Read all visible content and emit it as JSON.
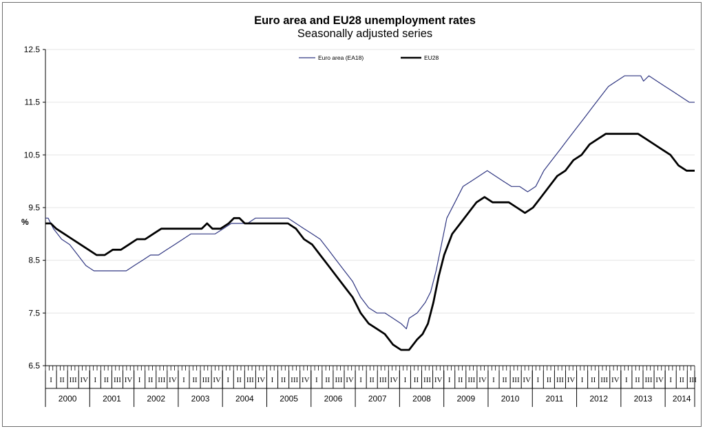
{
  "chart_data": {
    "type": "line",
    "title": "Euro area and EU28 unemployment rates",
    "subtitle": "Seasonally adjusted series",
    "ylabel": "%",
    "ylim": [
      6.5,
      12.5
    ],
    "yticks": [
      "12.5",
      "11.5",
      "10.5",
      "9.5",
      "8.5",
      "7.5",
      "6.5"
    ],
    "grid": true,
    "legend_position": "top-center",
    "years": [
      "2000",
      "2001",
      "2002",
      "2003",
      "2004",
      "2005",
      "2006",
      "2007",
      "2008",
      "2009",
      "2010",
      "2011",
      "2012",
      "2013",
      "2014"
    ],
    "quarters": [
      "I",
      "II",
      "III",
      "IV"
    ],
    "last_year_quarters": 3,
    "months_total": 176,
    "series": [
      {
        "name": "Euro area (EA18)",
        "color": "#2e3580",
        "keypoints": [
          [
            0,
            9.3
          ],
          [
            1,
            9.3
          ],
          [
            3,
            9.1
          ],
          [
            6,
            8.9
          ],
          [
            9,
            8.8
          ],
          [
            12,
            8.6
          ],
          [
            15,
            8.4
          ],
          [
            18,
            8.3
          ],
          [
            21,
            8.3
          ],
          [
            24,
            8.3
          ],
          [
            27,
            8.3
          ],
          [
            30,
            8.3
          ],
          [
            33,
            8.4
          ],
          [
            36,
            8.5
          ],
          [
            39,
            8.6
          ],
          [
            42,
            8.6
          ],
          [
            45,
            8.7
          ],
          [
            48,
            8.8
          ],
          [
            51,
            8.9
          ],
          [
            54,
            9.0
          ],
          [
            57,
            9.0
          ],
          [
            60,
            9.0
          ],
          [
            63,
            9.0
          ],
          [
            66,
            9.1
          ],
          [
            69,
            9.2
          ],
          [
            72,
            9.2
          ],
          [
            75,
            9.2
          ],
          [
            78,
            9.3
          ],
          [
            81,
            9.3
          ],
          [
            84,
            9.3
          ],
          [
            87,
            9.3
          ],
          [
            90,
            9.3
          ],
          [
            93,
            9.2
          ],
          [
            96,
            9.1
          ],
          [
            99,
            9.0
          ],
          [
            102,
            8.9
          ],
          [
            105,
            8.7
          ],
          [
            108,
            8.5
          ],
          [
            111,
            8.3
          ],
          [
            114,
            8.1
          ],
          [
            117,
            7.8
          ],
          [
            120,
            7.6
          ],
          [
            123,
            7.5
          ],
          [
            126,
            7.5
          ],
          [
            129,
            7.4
          ],
          [
            132,
            7.3
          ],
          [
            134,
            7.2
          ],
          [
            135,
            7.4
          ],
          [
            138,
            7.5
          ],
          [
            141,
            7.7
          ],
          [
            143,
            7.9
          ],
          [
            145,
            8.3
          ],
          [
            147,
            8.8
          ],
          [
            149,
            9.3
          ],
          [
            152,
            9.6
          ],
          [
            155,
            9.9
          ],
          [
            158,
            10.0
          ],
          [
            161,
            10.1
          ],
          [
            164,
            10.2
          ],
          [
            167,
            10.1
          ],
          [
            170,
            10.0
          ],
          [
            173,
            9.9
          ],
          [
            176,
            9.9
          ],
          [
            179,
            9.8
          ],
          [
            182,
            9.9
          ],
          [
            185,
            10.2
          ],
          [
            188,
            10.4
          ],
          [
            191,
            10.6
          ],
          [
            194,
            10.8
          ],
          [
            197,
            11.0
          ],
          [
            200,
            11.2
          ],
          [
            203,
            11.4
          ],
          [
            206,
            11.6
          ],
          [
            209,
            11.8
          ],
          [
            212,
            11.9
          ],
          [
            215,
            12.0
          ],
          [
            218,
            12.0
          ],
          [
            221,
            12.0
          ],
          [
            222,
            11.9
          ],
          [
            224,
            12.0
          ],
          [
            227,
            11.9
          ],
          [
            230,
            11.8
          ],
          [
            233,
            11.7
          ],
          [
            236,
            11.6
          ],
          [
            239,
            11.5
          ],
          [
            241,
            11.5
          ]
        ]
      },
      {
        "name": "EU28",
        "color": "#000000",
        "keypoints": [
          [
            0,
            9.2
          ],
          [
            2,
            9.2
          ],
          [
            4,
            9.1
          ],
          [
            7,
            9.0
          ],
          [
            10,
            8.9
          ],
          [
            13,
            8.8
          ],
          [
            16,
            8.7
          ],
          [
            19,
            8.6
          ],
          [
            22,
            8.6
          ],
          [
            25,
            8.7
          ],
          [
            28,
            8.7
          ],
          [
            31,
            8.8
          ],
          [
            34,
            8.9
          ],
          [
            37,
            8.9
          ],
          [
            40,
            9.0
          ],
          [
            43,
            9.1
          ],
          [
            46,
            9.1
          ],
          [
            49,
            9.1
          ],
          [
            52,
            9.1
          ],
          [
            55,
            9.1
          ],
          [
            58,
            9.1
          ],
          [
            60,
            9.2
          ],
          [
            62,
            9.1
          ],
          [
            65,
            9.1
          ],
          [
            68,
            9.2
          ],
          [
            70,
            9.3
          ],
          [
            72,
            9.3
          ],
          [
            74,
            9.2
          ],
          [
            78,
            9.2
          ],
          [
            82,
            9.2
          ],
          [
            86,
            9.2
          ],
          [
            90,
            9.2
          ],
          [
            93,
            9.1
          ],
          [
            96,
            8.9
          ],
          [
            99,
            8.8
          ],
          [
            102,
            8.6
          ],
          [
            105,
            8.4
          ],
          [
            108,
            8.2
          ],
          [
            111,
            8.0
          ],
          [
            114,
            7.8
          ],
          [
            117,
            7.5
          ],
          [
            120,
            7.3
          ],
          [
            123,
            7.2
          ],
          [
            126,
            7.1
          ],
          [
            129,
            6.9
          ],
          [
            132,
            6.8
          ],
          [
            135,
            6.8
          ],
          [
            138,
            7.0
          ],
          [
            140,
            7.1
          ],
          [
            142,
            7.3
          ],
          [
            144,
            7.7
          ],
          [
            146,
            8.2
          ],
          [
            148,
            8.6
          ],
          [
            151,
            9.0
          ],
          [
            154,
            9.2
          ],
          [
            157,
            9.4
          ],
          [
            160,
            9.6
          ],
          [
            163,
            9.7
          ],
          [
            166,
            9.6
          ],
          [
            169,
            9.6
          ],
          [
            172,
            9.6
          ],
          [
            175,
            9.5
          ],
          [
            178,
            9.4
          ],
          [
            181,
            9.5
          ],
          [
            184,
            9.7
          ],
          [
            187,
            9.9
          ],
          [
            190,
            10.1
          ],
          [
            193,
            10.2
          ],
          [
            196,
            10.4
          ],
          [
            199,
            10.5
          ],
          [
            202,
            10.7
          ],
          [
            205,
            10.8
          ],
          [
            208,
            10.9
          ],
          [
            211,
            10.9
          ],
          [
            214,
            10.9
          ],
          [
            217,
            10.9
          ],
          [
            220,
            10.9
          ],
          [
            223,
            10.8
          ],
          [
            226,
            10.7
          ],
          [
            229,
            10.6
          ],
          [
            232,
            10.5
          ],
          [
            235,
            10.3
          ],
          [
            238,
            10.2
          ],
          [
            241,
            10.2
          ]
        ]
      }
    ]
  }
}
